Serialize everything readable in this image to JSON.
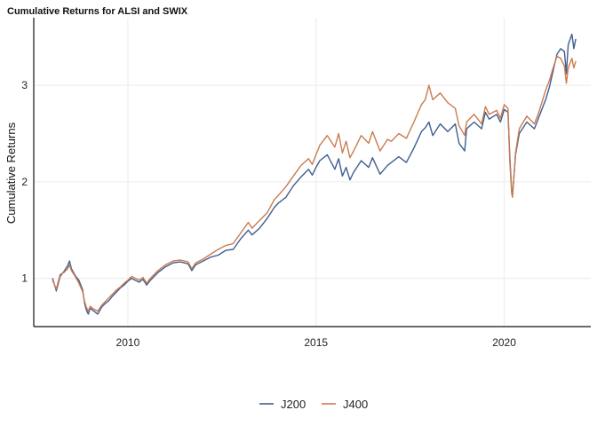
{
  "chart_data": {
    "type": "line",
    "title": "Cumulative Returns for ALSI and SWIX",
    "xlabel": "",
    "ylabel": "Cumulative Returns",
    "x_range": [
      2007.5,
      2022.3
    ],
    "ylim": [
      0.5,
      3.7
    ],
    "x_ticks": [
      2010,
      2015,
      2020
    ],
    "x_tick_labels": [
      "2010",
      "2015",
      "2020"
    ],
    "y_ticks": [
      1,
      2,
      3
    ],
    "y_tick_labels": [
      "1",
      "2",
      "3"
    ],
    "grid": true,
    "legend_position": "bottom",
    "series": [
      {
        "name": "J200",
        "color": "#3F5F8F",
        "points": [
          [
            2008.0,
            1.0
          ],
          [
            2008.1,
            0.87
          ],
          [
            2008.2,
            1.02
          ],
          [
            2008.3,
            1.07
          ],
          [
            2008.4,
            1.13
          ],
          [
            2008.45,
            1.18
          ],
          [
            2008.5,
            1.1
          ],
          [
            2008.6,
            1.03
          ],
          [
            2008.7,
            0.98
          ],
          [
            2008.8,
            0.88
          ],
          [
            2008.85,
            0.74
          ],
          [
            2008.9,
            0.67
          ],
          [
            2008.95,
            0.63
          ],
          [
            2009.0,
            0.69
          ],
          [
            2009.1,
            0.66
          ],
          [
            2009.2,
            0.63
          ],
          [
            2009.3,
            0.7
          ],
          [
            2009.4,
            0.74
          ],
          [
            2009.5,
            0.77
          ],
          [
            2009.6,
            0.82
          ],
          [
            2009.7,
            0.86
          ],
          [
            2009.8,
            0.9
          ],
          [
            2009.9,
            0.93
          ],
          [
            2010.0,
            0.97
          ],
          [
            2010.1,
            1.0
          ],
          [
            2010.3,
            0.96
          ],
          [
            2010.4,
            0.99
          ],
          [
            2010.5,
            0.93
          ],
          [
            2010.6,
            0.98
          ],
          [
            2010.8,
            1.06
          ],
          [
            2011.0,
            1.12
          ],
          [
            2011.2,
            1.16
          ],
          [
            2011.4,
            1.17
          ],
          [
            2011.6,
            1.15
          ],
          [
            2011.7,
            1.08
          ],
          [
            2011.8,
            1.14
          ],
          [
            2012.0,
            1.18
          ],
          [
            2012.2,
            1.22
          ],
          [
            2012.4,
            1.24
          ],
          [
            2012.6,
            1.29
          ],
          [
            2012.8,
            1.3
          ],
          [
            2013.0,
            1.41
          ],
          [
            2013.2,
            1.5
          ],
          [
            2013.3,
            1.45
          ],
          [
            2013.5,
            1.52
          ],
          [
            2013.7,
            1.62
          ],
          [
            2013.9,
            1.74
          ],
          [
            2014.0,
            1.78
          ],
          [
            2014.2,
            1.84
          ],
          [
            2014.4,
            1.96
          ],
          [
            2014.6,
            2.05
          ],
          [
            2014.8,
            2.13
          ],
          [
            2014.9,
            2.07
          ],
          [
            2015.0,
            2.15
          ],
          [
            2015.1,
            2.22
          ],
          [
            2015.3,
            2.28
          ],
          [
            2015.5,
            2.13
          ],
          [
            2015.6,
            2.24
          ],
          [
            2015.7,
            2.06
          ],
          [
            2015.8,
            2.15
          ],
          [
            2015.9,
            2.02
          ],
          [
            2016.0,
            2.1
          ],
          [
            2016.2,
            2.22
          ],
          [
            2016.4,
            2.15
          ],
          [
            2016.5,
            2.25
          ],
          [
            2016.7,
            2.08
          ],
          [
            2016.9,
            2.17
          ],
          [
            2017.0,
            2.2
          ],
          [
            2017.2,
            2.26
          ],
          [
            2017.4,
            2.2
          ],
          [
            2017.6,
            2.35
          ],
          [
            2017.8,
            2.52
          ],
          [
            2017.9,
            2.56
          ],
          [
            2018.0,
            2.62
          ],
          [
            2018.1,
            2.48
          ],
          [
            2018.3,
            2.6
          ],
          [
            2018.5,
            2.52
          ],
          [
            2018.7,
            2.6
          ],
          [
            2018.8,
            2.4
          ],
          [
            2018.95,
            2.32
          ],
          [
            2019.0,
            2.55
          ],
          [
            2019.2,
            2.62
          ],
          [
            2019.4,
            2.55
          ],
          [
            2019.5,
            2.72
          ],
          [
            2019.6,
            2.65
          ],
          [
            2019.8,
            2.7
          ],
          [
            2019.9,
            2.62
          ],
          [
            2020.0,
            2.75
          ],
          [
            2020.1,
            2.72
          ],
          [
            2020.15,
            2.25
          ],
          [
            2020.2,
            1.9
          ],
          [
            2020.22,
            1.86
          ],
          [
            2020.3,
            2.28
          ],
          [
            2020.4,
            2.5
          ],
          [
            2020.6,
            2.62
          ],
          [
            2020.8,
            2.55
          ],
          [
            2020.9,
            2.65
          ],
          [
            2021.0,
            2.75
          ],
          [
            2021.1,
            2.85
          ],
          [
            2021.2,
            2.98
          ],
          [
            2021.3,
            3.15
          ],
          [
            2021.4,
            3.32
          ],
          [
            2021.5,
            3.38
          ],
          [
            2021.6,
            3.35
          ],
          [
            2021.65,
            3.12
          ],
          [
            2021.7,
            3.42
          ],
          [
            2021.8,
            3.53
          ],
          [
            2021.85,
            3.38
          ],
          [
            2021.9,
            3.48
          ]
        ]
      },
      {
        "name": "J400",
        "color": "#CC7A50",
        "points": [
          [
            2008.0,
            0.98
          ],
          [
            2008.1,
            0.89
          ],
          [
            2008.2,
            1.04
          ],
          [
            2008.3,
            1.06
          ],
          [
            2008.4,
            1.1
          ],
          [
            2008.45,
            1.14
          ],
          [
            2008.5,
            1.08
          ],
          [
            2008.6,
            1.02
          ],
          [
            2008.7,
            0.95
          ],
          [
            2008.8,
            0.86
          ],
          [
            2008.85,
            0.76
          ],
          [
            2008.9,
            0.7
          ],
          [
            2008.95,
            0.66
          ],
          [
            2009.0,
            0.71
          ],
          [
            2009.1,
            0.68
          ],
          [
            2009.2,
            0.66
          ],
          [
            2009.3,
            0.72
          ],
          [
            2009.4,
            0.76
          ],
          [
            2009.5,
            0.8
          ],
          [
            2009.6,
            0.84
          ],
          [
            2009.7,
            0.88
          ],
          [
            2009.8,
            0.91
          ],
          [
            2009.9,
            0.95
          ],
          [
            2010.0,
            0.98
          ],
          [
            2010.1,
            1.02
          ],
          [
            2010.3,
            0.98
          ],
          [
            2010.4,
            1.01
          ],
          [
            2010.5,
            0.95
          ],
          [
            2010.6,
            1.0
          ],
          [
            2010.8,
            1.08
          ],
          [
            2011.0,
            1.14
          ],
          [
            2011.2,
            1.18
          ],
          [
            2011.4,
            1.19
          ],
          [
            2011.6,
            1.17
          ],
          [
            2011.7,
            1.1
          ],
          [
            2011.8,
            1.16
          ],
          [
            2012.0,
            1.2
          ],
          [
            2012.2,
            1.25
          ],
          [
            2012.4,
            1.3
          ],
          [
            2012.6,
            1.34
          ],
          [
            2012.8,
            1.36
          ],
          [
            2013.0,
            1.47
          ],
          [
            2013.2,
            1.58
          ],
          [
            2013.3,
            1.52
          ],
          [
            2013.5,
            1.6
          ],
          [
            2013.7,
            1.68
          ],
          [
            2013.9,
            1.82
          ],
          [
            2014.0,
            1.86
          ],
          [
            2014.2,
            1.95
          ],
          [
            2014.4,
            2.06
          ],
          [
            2014.6,
            2.17
          ],
          [
            2014.8,
            2.24
          ],
          [
            2014.9,
            2.18
          ],
          [
            2015.0,
            2.28
          ],
          [
            2015.1,
            2.38
          ],
          [
            2015.3,
            2.48
          ],
          [
            2015.5,
            2.36
          ],
          [
            2015.6,
            2.5
          ],
          [
            2015.7,
            2.3
          ],
          [
            2015.8,
            2.42
          ],
          [
            2015.9,
            2.25
          ],
          [
            2016.0,
            2.32
          ],
          [
            2016.2,
            2.48
          ],
          [
            2016.4,
            2.4
          ],
          [
            2016.5,
            2.52
          ],
          [
            2016.7,
            2.32
          ],
          [
            2016.9,
            2.44
          ],
          [
            2017.0,
            2.42
          ],
          [
            2017.2,
            2.5
          ],
          [
            2017.4,
            2.45
          ],
          [
            2017.6,
            2.62
          ],
          [
            2017.8,
            2.8
          ],
          [
            2017.9,
            2.85
          ],
          [
            2018.0,
            3.0
          ],
          [
            2018.1,
            2.85
          ],
          [
            2018.3,
            2.92
          ],
          [
            2018.5,
            2.82
          ],
          [
            2018.7,
            2.76
          ],
          [
            2018.8,
            2.58
          ],
          [
            2018.95,
            2.48
          ],
          [
            2019.0,
            2.62
          ],
          [
            2019.2,
            2.7
          ],
          [
            2019.4,
            2.6
          ],
          [
            2019.5,
            2.78
          ],
          [
            2019.6,
            2.7
          ],
          [
            2019.8,
            2.74
          ],
          [
            2019.9,
            2.66
          ],
          [
            2020.0,
            2.8
          ],
          [
            2020.1,
            2.76
          ],
          [
            2020.15,
            2.2
          ],
          [
            2020.2,
            1.88
          ],
          [
            2020.22,
            1.84
          ],
          [
            2020.3,
            2.3
          ],
          [
            2020.4,
            2.55
          ],
          [
            2020.6,
            2.68
          ],
          [
            2020.8,
            2.6
          ],
          [
            2020.9,
            2.7
          ],
          [
            2021.0,
            2.82
          ],
          [
            2021.1,
            2.95
          ],
          [
            2021.2,
            3.05
          ],
          [
            2021.3,
            3.18
          ],
          [
            2021.4,
            3.3
          ],
          [
            2021.5,
            3.28
          ],
          [
            2021.6,
            3.2
          ],
          [
            2021.65,
            3.02
          ],
          [
            2021.7,
            3.18
          ],
          [
            2021.8,
            3.28
          ],
          [
            2021.85,
            3.18
          ],
          [
            2021.9,
            3.25
          ]
        ]
      }
    ]
  }
}
